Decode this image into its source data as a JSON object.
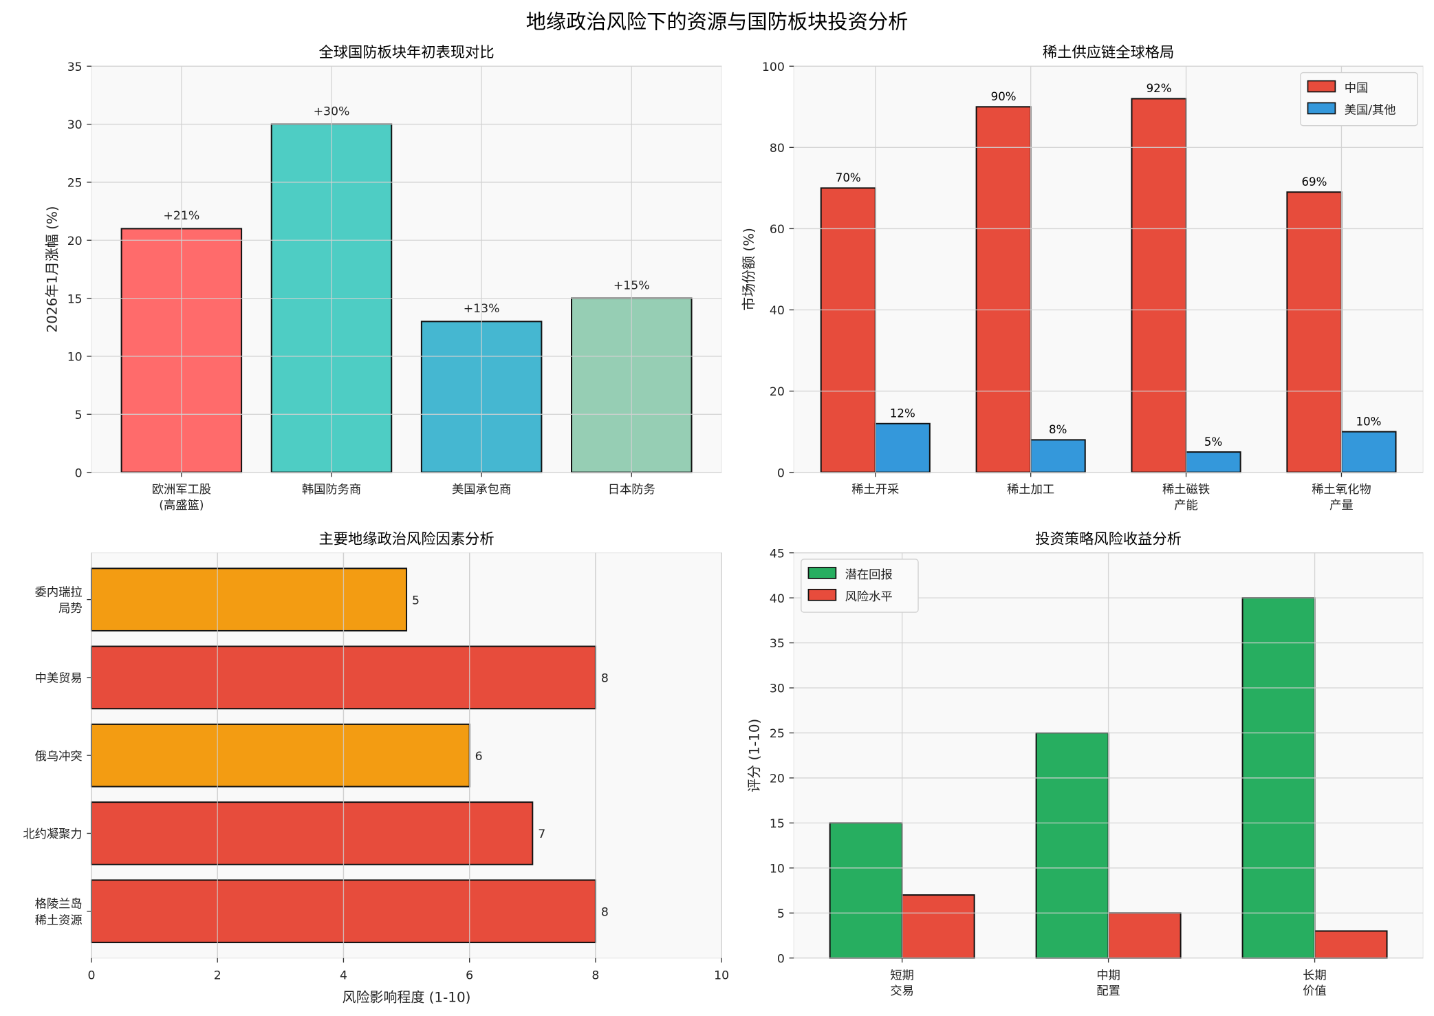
{
  "title": "地缘政治风险下的资源与国防板块投资分析",
  "chart_data": [
    {
      "type": "bar",
      "title": "全球国防板块年初表现对比",
      "ylabel": "2026年1月涨幅 (%)",
      "xlabel": "",
      "categories": [
        "欧洲军工股\n(高盛篮)",
        "韩国防务商",
        "美国承包商",
        "日本防务"
      ],
      "values": [
        21,
        30,
        13,
        15
      ],
      "data_labels": [
        "+21%",
        "+30%",
        "+13%",
        "+15%"
      ],
      "colors": [
        "#FF6B6B",
        "#4ECDC4",
        "#45B7D1",
        "#96CEB4"
      ],
      "ylim": [
        0,
        35
      ],
      "yticks": [
        0,
        5,
        10,
        15,
        20,
        25,
        30,
        35
      ],
      "grid": true
    },
    {
      "type": "bar",
      "title": "稀土供应链全球格局",
      "ylabel": "市场份额 (%)",
      "xlabel": "",
      "categories": [
        "稀土开采",
        "稀土加工",
        "稀土磁铁\n产能",
        "稀土氧化物\n产量"
      ],
      "series": [
        {
          "name": "中国",
          "values": [
            70,
            90,
            92,
            69
          ],
          "data_labels": [
            "70%",
            "90%",
            "92%",
            "69%"
          ],
          "color": "#E74C3C"
        },
        {
          "name": "美国/其他",
          "values": [
            12,
            8,
            5,
            10
          ],
          "data_labels": [
            "12%",
            "8%",
            "5%",
            "10%"
          ],
          "color": "#3498DB"
        }
      ],
      "ylim": [
        0,
        100
      ],
      "yticks": [
        0,
        20,
        40,
        60,
        80,
        100
      ],
      "legend": "top-right",
      "grid": true
    },
    {
      "type": "barh",
      "title": "主要地缘政治风险因素分析",
      "xlabel": "风险影响程度 (1-10)",
      "ylabel": "",
      "categories": [
        "格陵兰岛\n稀土资源",
        "北约凝聚力",
        "俄乌冲突",
        "中美贸易",
        "委内瑞拉\n局势"
      ],
      "values": [
        8,
        7,
        6,
        8,
        5
      ],
      "data_labels": [
        "8",
        "7",
        "6",
        "8",
        "5"
      ],
      "colors": [
        "#E74C3C",
        "#E74C3C",
        "#F39C12",
        "#E74C3C",
        "#F39C12"
      ],
      "xlim": [
        0,
        10
      ],
      "xticks": [
        0,
        2,
        4,
        6,
        8,
        10
      ],
      "grid": true
    },
    {
      "type": "bar",
      "title": "投资策略风险收益分析",
      "ylabel": "评分 (1-10)",
      "xlabel": "",
      "categories": [
        "短期\n交易",
        "中期\n配置",
        "长期\n价值"
      ],
      "series": [
        {
          "name": "潜在回报",
          "values": [
            15,
            25,
            40
          ],
          "color": "#27AE60"
        },
        {
          "name": "风险水平",
          "values": [
            7,
            5,
            3
          ],
          "color": "#E74C3C"
        }
      ],
      "ylim": [
        0,
        45
      ],
      "yticks": [
        0,
        5,
        10,
        15,
        20,
        25,
        30,
        35,
        40,
        45
      ],
      "legend": "top-left",
      "grid": true
    }
  ]
}
